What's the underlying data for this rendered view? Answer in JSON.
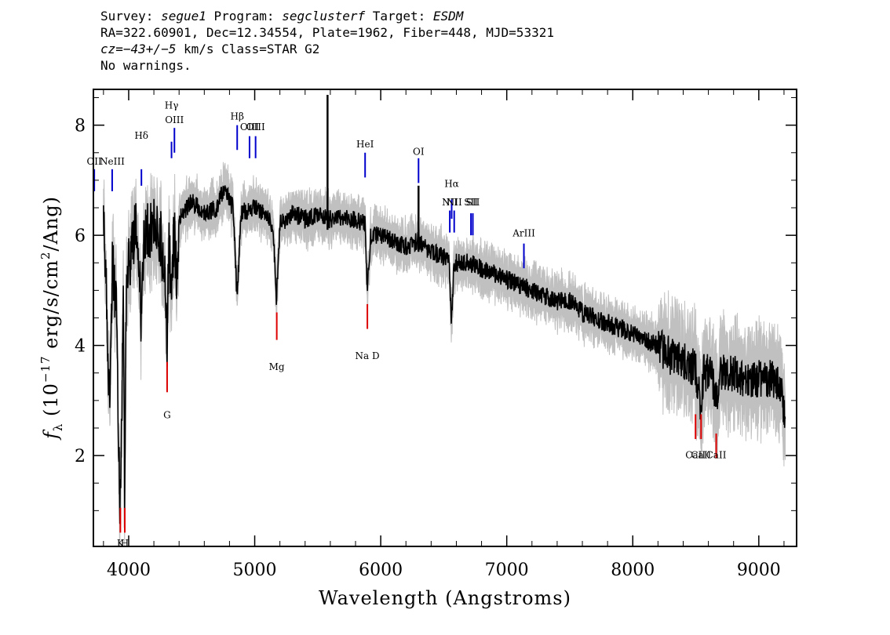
{
  "header": {
    "line1": {
      "survey_label": "Survey: ",
      "survey": "segue1",
      "program_label": " Program: ",
      "program": "segclusterf",
      "target_label": " Target: ",
      "target": "ESDM"
    },
    "line2": "RA=322.60901, Dec=12.34554, Plate=1962, Fiber=448, MJD=53321",
    "line3": {
      "cz_label": "cz",
      "cz_value": "=−43+/−5",
      "rest": " km/s Class=STAR G2"
    },
    "line4": "No warnings."
  },
  "chart_data": {
    "type": "line",
    "xlabel": "Wavelength (Angstroms)",
    "ylabel": "f_λ (10^-17 erg/s/cm^2/Ang)",
    "ylabel_parts": {
      "f": "f",
      "lambda": "λ",
      "pre": " (10",
      "exp1": "−17",
      "mid": " erg/s/cm",
      "exp2": "2",
      "post": "/Ang)"
    },
    "xlim": [
      3720,
      9300
    ],
    "ylim": [
      0.35,
      8.65
    ],
    "xticks": [
      4000,
      5000,
      6000,
      7000,
      8000,
      9000
    ],
    "yticks": [
      2,
      4,
      6,
      8
    ],
    "colors": {
      "spectrum": "#000000",
      "error_band": "#c0c0c0",
      "emission": "#0000cc",
      "absorption": "#dd0000"
    },
    "spectrum_anchors": [
      [
        3800,
        6.7
      ],
      [
        3830,
        4.3
      ],
      [
        3850,
        2.7
      ],
      [
        3870,
        5.5
      ],
      [
        3900,
        4.8
      ],
      [
        3920,
        2.4
      ],
      [
        3933,
        0.95
      ],
      [
        3945,
        2.6
      ],
      [
        3958,
        5.0
      ],
      [
        3968,
        1.0
      ],
      [
        3980,
        4.8
      ],
      [
        4000,
        5.4
      ],
      [
        4030,
        5.8
      ],
      [
        4060,
        6.2
      ],
      [
        4080,
        5.7
      ],
      [
        4101,
        4.3
      ],
      [
        4120,
        6.0
      ],
      [
        4160,
        6.1
      ],
      [
        4200,
        6.2
      ],
      [
        4250,
        6.0
      ],
      [
        4290,
        5.2
      ],
      [
        4305,
        4.0
      ],
      [
        4320,
        5.9
      ],
      [
        4340,
        5.0
      ],
      [
        4360,
        6.1
      ],
      [
        4383,
        5.2
      ],
      [
        4400,
        6.3
      ],
      [
        4500,
        6.6
      ],
      [
        4600,
        6.4
      ],
      [
        4700,
        6.5
      ],
      [
        4760,
        6.9
      ],
      [
        4800,
        6.6
      ],
      [
        4830,
        6.5
      ],
      [
        4861,
        4.8
      ],
      [
        4890,
        6.4
      ],
      [
        5000,
        6.5
      ],
      [
        5100,
        6.4
      ],
      [
        5150,
        6.0
      ],
      [
        5172,
        4.8
      ],
      [
        5200,
        6.2
      ],
      [
        5300,
        6.4
      ],
      [
        5400,
        6.3
      ],
      [
        5500,
        6.4
      ],
      [
        5578,
        6.3
      ],
      [
        5600,
        6.3
      ],
      [
        5700,
        6.3
      ],
      [
        5800,
        6.3
      ],
      [
        5875,
        6.2
      ],
      [
        5893,
        5.0
      ],
      [
        5920,
        6.0
      ],
      [
        6000,
        6.0
      ],
      [
        6100,
        5.9
      ],
      [
        6200,
        5.8
      ],
      [
        6300,
        5.9
      ],
      [
        6400,
        5.7
      ],
      [
        6500,
        5.6
      ],
      [
        6540,
        5.6
      ],
      [
        6563,
        4.4
      ],
      [
        6580,
        5.5
      ],
      [
        6700,
        5.5
      ],
      [
        6800,
        5.4
      ],
      [
        6900,
        5.3
      ],
      [
        7000,
        5.2
      ],
      [
        7100,
        5.1
      ],
      [
        7200,
        5.0
      ],
      [
        7300,
        4.9
      ],
      [
        7400,
        4.8
      ],
      [
        7500,
        4.8
      ],
      [
        7600,
        4.6
      ],
      [
        7700,
        4.5
      ],
      [
        7800,
        4.4
      ],
      [
        7900,
        4.3
      ],
      [
        8000,
        4.2
      ],
      [
        8100,
        4.1
      ],
      [
        8200,
        4.0
      ],
      [
        8300,
        3.8
      ],
      [
        8400,
        3.7
      ],
      [
        8498,
        3.6
      ],
      [
        8542,
        2.8
      ],
      [
        8560,
        3.5
      ],
      [
        8620,
        3.5
      ],
      [
        8662,
        3.0
      ],
      [
        8700,
        3.5
      ],
      [
        8800,
        3.5
      ],
      [
        8900,
        3.3
      ],
      [
        9000,
        3.4
      ],
      [
        9100,
        3.4
      ],
      [
        9180,
        3.3
      ],
      [
        9210,
        2.5
      ]
    ],
    "spikes": [
      {
        "x": 5578,
        "y": 8.55
      },
      {
        "x": 6300,
        "y": 6.9
      }
    ],
    "emission_lines": [
      {
        "label": "OII",
        "x": 3727,
        "y1": 6.8,
        "y2": 7.2,
        "label_y": 7.28
      },
      {
        "label": "NeIII",
        "x": 3869,
        "y1": 6.8,
        "y2": 7.2,
        "label_y": 7.28
      },
      {
        "label": "Hδ",
        "x": 4101,
        "y1": 6.9,
        "y2": 7.2,
        "label_y": 7.75
      },
      {
        "label": "Hγ",
        "x": 4340,
        "y1": 7.4,
        "y2": 7.7,
        "label_y": 8.3
      },
      {
        "label": "OIII",
        "x": 4363,
        "y1": 7.5,
        "y2": 7.95,
        "label_y": 8.04
      },
      {
        "label": "Hβ",
        "x": 4861,
        "y1": 7.55,
        "y2": 8.0,
        "label_y": 8.1
      },
      {
        "label": "OIII",
        "x": 4959,
        "y1": 7.4,
        "y2": 7.8,
        "label_y": 7.91
      },
      {
        "label": "OIII",
        "x": 5007,
        "y1": 7.4,
        "y2": 7.8,
        "label_y": 7.91
      },
      {
        "label": "HeI",
        "x": 5876,
        "y1": 7.05,
        "y2": 7.5,
        "label_y": 7.6
      },
      {
        "label": "OI",
        "x": 6300,
        "y1": 6.95,
        "y2": 7.4,
        "label_y": 7.46
      },
      {
        "label": "NII",
        "x": 6548,
        "y1": 6.05,
        "y2": 6.45,
        "label_y": 6.54
      },
      {
        "label": "Hα",
        "x": 6563,
        "y1": 6.3,
        "y2": 6.65,
        "label_y": 6.88
      },
      {
        "label": "NII",
        "x": 6583,
        "y1": 6.05,
        "y2": 6.45,
        "label_y": 6.54
      },
      {
        "label": "SII",
        "x": 6716,
        "y1": 6.0,
        "y2": 6.4,
        "label_y": 6.54
      },
      {
        "label": "SII",
        "x": 6731,
        "y1": 6.0,
        "y2": 6.4,
        "label_y": 6.54
      },
      {
        "label": "ArIII",
        "x": 7136,
        "y1": 5.4,
        "y2": 5.85,
        "label_y": 5.98
      }
    ],
    "absorption_lines": [
      {
        "label": "K",
        "x": 3934,
        "y1": 0.6,
        "y2": 1.05,
        "label_y": 0.35
      },
      {
        "label": "H",
        "x": 3969,
        "y1": 0.6,
        "y2": 1.05,
        "label_y": 0.35
      },
      {
        "label": "G",
        "x": 4305,
        "y1": 3.15,
        "y2": 3.7,
        "label_y": 2.68
      },
      {
        "label": "Mg",
        "x": 5175,
        "y1": 4.1,
        "y2": 4.6,
        "label_y": 3.55
      },
      {
        "label": "Na D",
        "x": 5894,
        "y1": 4.3,
        "y2": 4.75,
        "label_y": 3.75
      },
      {
        "label": "CaII",
        "x": 8498,
        "y1": 2.3,
        "y2": 2.75,
        "label_y": 1.95
      },
      {
        "label": "CaII",
        "x": 8542,
        "y1": 2.3,
        "y2": 2.75,
        "label_y": 1.95
      },
      {
        "label": "CaII",
        "x": 8662,
        "y1": 1.95,
        "y2": 2.4,
        "label_y": 1.95
      }
    ],
    "grid": false
  }
}
